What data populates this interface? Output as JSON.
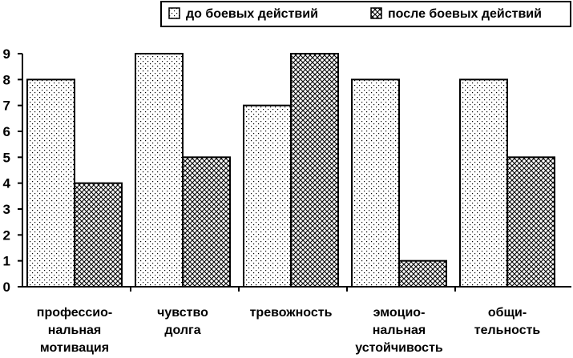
{
  "chart_data": {
    "type": "bar",
    "categories": [
      [
        "профессио-",
        "нальная",
        "мотивация"
      ],
      [
        "чувство",
        "долга"
      ],
      [
        "тревожность"
      ],
      [
        "эмоцио-",
        "нальная",
        "устойчивость"
      ],
      [
        "общи-",
        "тельность"
      ]
    ],
    "series": [
      {
        "name": "до боевых действий",
        "values": [
          8,
          9,
          7,
          8,
          8
        ],
        "pattern": "dots"
      },
      {
        "name": "после боевых действий",
        "values": [
          4,
          5,
          9,
          1,
          5
        ],
        "pattern": "crosshatch"
      }
    ],
    "ylim": [
      0,
      9
    ],
    "yticks": [
      0,
      1,
      2,
      3,
      4,
      5,
      6,
      7,
      8,
      9
    ],
    "grid": false,
    "legend_position": "top-right",
    "colors": {
      "bar_stroke": "#000000",
      "pattern": "#000000",
      "background": "#ffffff"
    }
  }
}
